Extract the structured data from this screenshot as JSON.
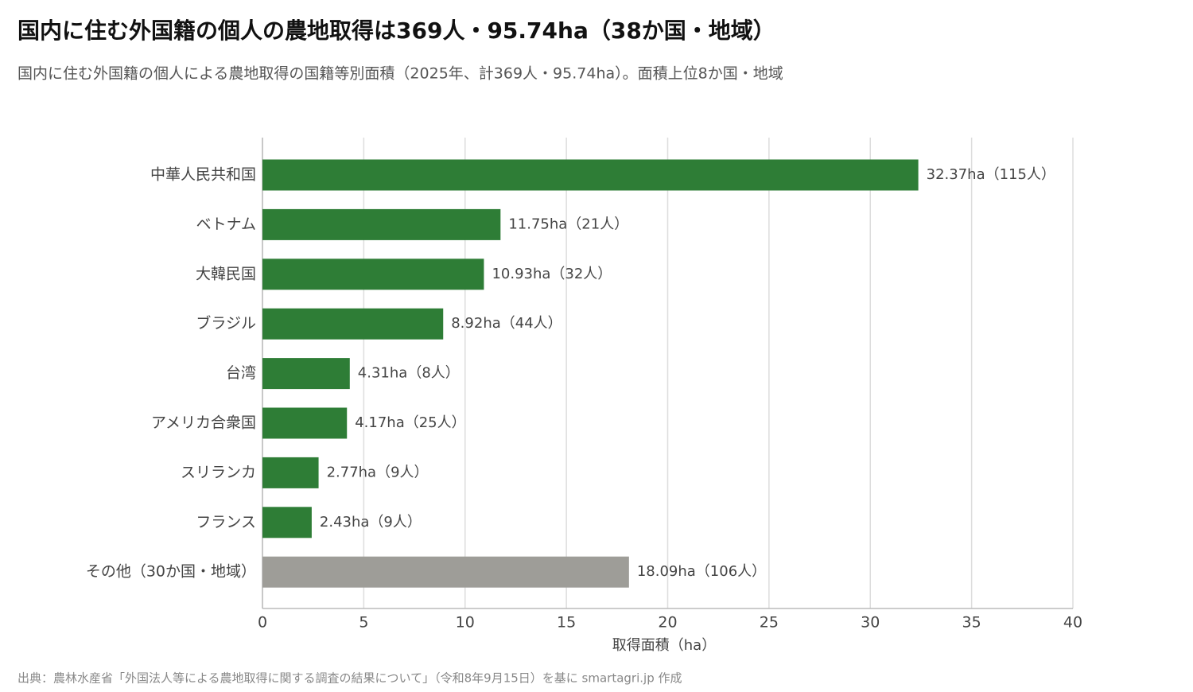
{
  "chart_data": {
    "type": "bar",
    "orientation": "horizontal",
    "title": "国内に住む外国籍の個人の農地取得は369人・95.74ha（38か国・地域）",
    "subtitle": "国内に住む外国籍の個人による農地取得の国籍等別面積（2025年、計369人・95.74ha）。面積上位8か国・地域",
    "categories": [
      "中華人民共和国",
      "ベトナム",
      "大韓民国",
      "ブラジル",
      "台湾",
      "アメリカ合衆国",
      "スリランカ",
      "フランス",
      "その他（30か国・地域）"
    ],
    "values": [
      32.37,
      11.75,
      10.93,
      8.92,
      4.31,
      4.17,
      2.77,
      2.43,
      18.09
    ],
    "value_labels": [
      "32.37ha（115人）",
      "11.75ha（21人）",
      "10.93ha（32人）",
      "8.92ha（44人）",
      "4.31ha（8人）",
      "4.17ha（25人）",
      "2.77ha（9人）",
      "2.43ha（9人）",
      "18.09ha（106人）"
    ],
    "colors": [
      "#2e7d36",
      "#2e7d36",
      "#2e7d36",
      "#2e7d36",
      "#2e7d36",
      "#2e7d36",
      "#2e7d36",
      "#2e7d36",
      "#9e9d98"
    ],
    "xlabel": "取得面積（ha）",
    "xlim": [
      0,
      40
    ],
    "xticks": [
      0,
      5,
      10,
      15,
      20,
      25,
      30,
      35,
      40
    ],
    "grid": true,
    "source": "出典：農林水産省「外国法人等による農地取得に関する調査の結果について」（令和8年9月15日）を基に smartagri.jp 作成"
  }
}
